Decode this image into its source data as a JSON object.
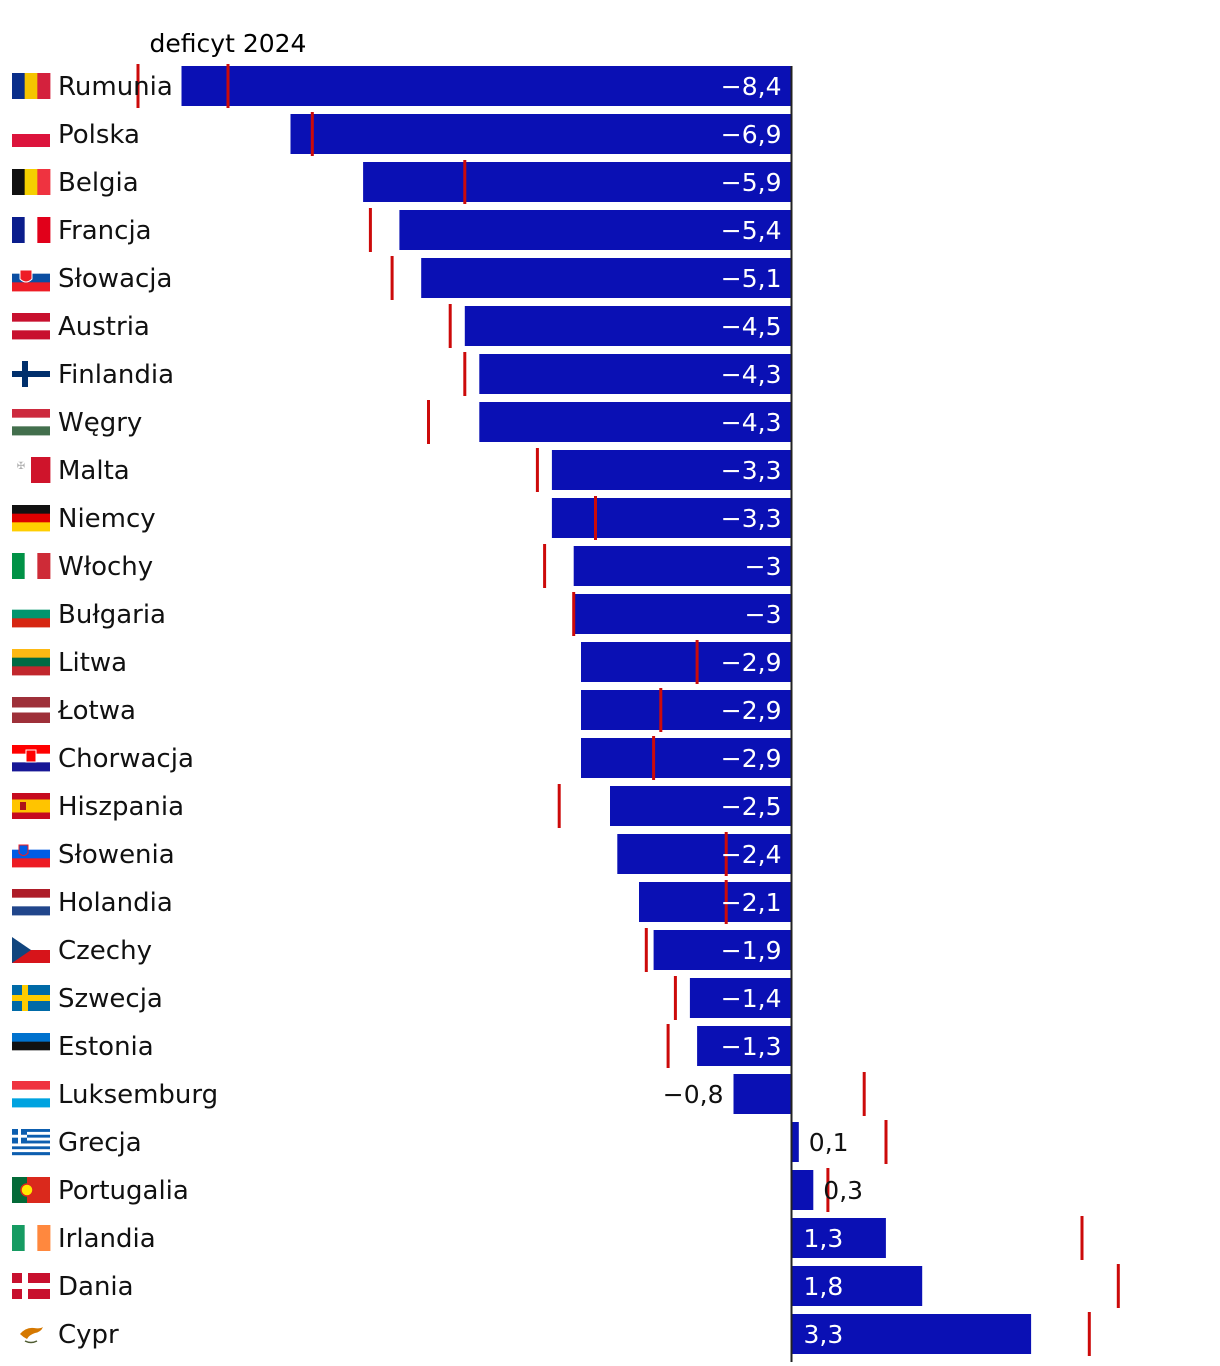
{
  "chart_data": {
    "type": "bar",
    "orientation": "horizontal",
    "legend_marker_label": "deficyt 2024",
    "colors": {
      "bar": "#0a10b4",
      "marker": "#cc0a0a",
      "axis": "#222222",
      "label_inside": "#ffffff",
      "label_outside": "#111111"
    },
    "xlim": [
      -10.9,
      5.9
    ],
    "rows": [
      {
        "country": "Rumunia",
        "value": -8.4,
        "label": "−8,4",
        "deficit_2024": -9.0,
        "flag": "ro"
      },
      {
        "country": "Polska",
        "value": -6.9,
        "label": "−6,9",
        "deficit_2024": -6.6,
        "flag": "pl"
      },
      {
        "country": "Belgia",
        "value": -5.9,
        "label": "−5,9",
        "deficit_2024": -4.5,
        "flag": "be"
      },
      {
        "country": "Francja",
        "value": -5.4,
        "label": "−5,4",
        "deficit_2024": -5.8,
        "flag": "fr"
      },
      {
        "country": "Słowacja",
        "value": -5.1,
        "label": "−5,1",
        "deficit_2024": -5.5,
        "flag": "sk"
      },
      {
        "country": "Austria",
        "value": -4.5,
        "label": "−4,5",
        "deficit_2024": -4.7,
        "flag": "at"
      },
      {
        "country": "Finlandia",
        "value": -4.3,
        "label": "−4,3",
        "deficit_2024": -4.5,
        "flag": "fi"
      },
      {
        "country": "Węgry",
        "value": -4.3,
        "label": "−4,3",
        "deficit_2024": -5.0,
        "flag": "hu"
      },
      {
        "country": "Malta",
        "value": -3.3,
        "label": "−3,3",
        "deficit_2024": -3.5,
        "flag": "mt"
      },
      {
        "country": "Niemcy",
        "value": -3.3,
        "label": "−3,3",
        "deficit_2024": -2.7,
        "flag": "de"
      },
      {
        "country": "Włochy",
        "value": -3.0,
        "label": "−3",
        "deficit_2024": -3.4,
        "flag": "it"
      },
      {
        "country": "Bułgaria",
        "value": -3.0,
        "label": "−3",
        "deficit_2024": -3.0,
        "flag": "bg"
      },
      {
        "country": "Litwa",
        "value": -2.9,
        "label": "−2,9",
        "deficit_2024": -1.3,
        "flag": "lt"
      },
      {
        "country": "Łotwa",
        "value": -2.9,
        "label": "−2,9",
        "deficit_2024": -1.8,
        "flag": "lv"
      },
      {
        "country": "Chorwacja",
        "value": -2.9,
        "label": "−2,9",
        "deficit_2024": -1.9,
        "flag": "hr"
      },
      {
        "country": "Hiszpania",
        "value": -2.5,
        "label": "−2,5",
        "deficit_2024": -3.2,
        "flag": "es"
      },
      {
        "country": "Słowenia",
        "value": -2.4,
        "label": "−2,4",
        "deficit_2024": -0.9,
        "flag": "si"
      },
      {
        "country": "Holandia",
        "value": -2.1,
        "label": "−2,1",
        "deficit_2024": -0.9,
        "flag": "nl"
      },
      {
        "country": "Czechy",
        "value": -1.9,
        "label": "−1,9",
        "deficit_2024": -2.0,
        "flag": "cz"
      },
      {
        "country": "Szwecja",
        "value": -1.4,
        "label": "−1,4",
        "deficit_2024": -1.6,
        "flag": "se"
      },
      {
        "country": "Estonia",
        "value": -1.3,
        "label": "−1,3",
        "deficit_2024": -1.7,
        "flag": "ee"
      },
      {
        "country": "Luksemburg",
        "value": -0.8,
        "label": "−0,8",
        "deficit_2024": 1.0,
        "flag": "lu"
      },
      {
        "country": "Grecja",
        "value": 0.1,
        "label": "0,1",
        "deficit_2024": 1.3,
        "flag": "gr"
      },
      {
        "country": "Portugalia",
        "value": 0.3,
        "label": "0,3",
        "deficit_2024": 0.5,
        "flag": "pt"
      },
      {
        "country": "Irlandia",
        "value": 1.3,
        "label": "1,3",
        "deficit_2024": 4.0,
        "flag": "ie"
      },
      {
        "country": "Dania",
        "value": 1.8,
        "label": "1,8",
        "deficit_2024": 4.5,
        "flag": "dk"
      },
      {
        "country": "Cypr",
        "value": 3.3,
        "label": "3,3",
        "deficit_2024": 4.1,
        "flag": "cy"
      }
    ]
  }
}
